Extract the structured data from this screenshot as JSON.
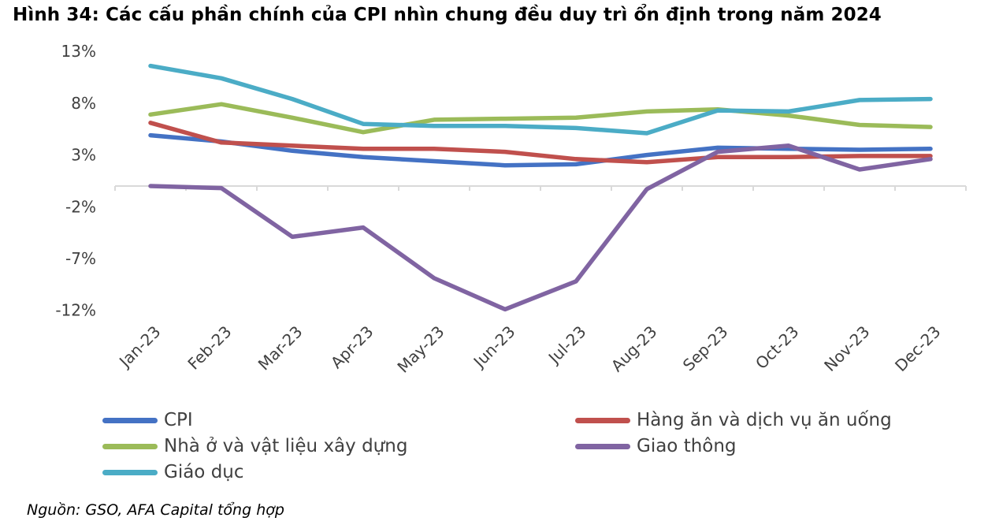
{
  "title": "Hình 34: Các cấu phần chính của CPI nhìn chung đều duy trì ổn định trong năm 2024",
  "source": "Nguồn: GSO, AFA Capital tổng hợp",
  "chart_data": {
    "type": "line",
    "categories": [
      "Jan-23",
      "Feb-23",
      "Mar-23",
      "Apr-23",
      "May-23",
      "Jun-23",
      "Jul-23",
      "Aug-23",
      "Sep-23",
      "Oct-23",
      "Nov-23",
      "Dec-23"
    ],
    "yticks": [
      "13%",
      "8%",
      "3%",
      "-2%",
      "-7%",
      "-12%"
    ],
    "ylim": [
      -12,
      13
    ],
    "series": [
      {
        "name": "CPI",
        "color": "#4472c4",
        "values": [
          4.9,
          4.3,
          3.4,
          2.8,
          2.4,
          2.0,
          2.1,
          3.0,
          3.7,
          3.6,
          3.5,
          3.6
        ]
      },
      {
        "name": "Hàng ăn và dịch vụ ăn uống",
        "color": "#c0504d",
        "values": [
          6.1,
          4.2,
          3.9,
          3.6,
          3.6,
          3.3,
          2.6,
          2.3,
          2.8,
          2.8,
          2.9,
          2.9
        ]
      },
      {
        "name": "Nhà ở và vật liệu xây dựng",
        "color": "#9bbb59",
        "values": [
          6.9,
          7.9,
          6.6,
          5.2,
          6.4,
          6.5,
          6.6,
          7.2,
          7.4,
          6.8,
          5.9,
          5.7
        ]
      },
      {
        "name": "Giao thông",
        "color": "#8064a2",
        "values": [
          0.0,
          -0.2,
          -4.9,
          -4.0,
          -8.9,
          -11.9,
          -9.2,
          -0.3,
          3.3,
          3.9,
          1.6,
          2.6
        ]
      },
      {
        "name": "Giáo dục",
        "color": "#4bacc6",
        "values": [
          11.6,
          10.4,
          8.4,
          6.0,
          5.8,
          5.8,
          5.6,
          5.1,
          7.3,
          7.2,
          8.3,
          8.4
        ]
      }
    ]
  }
}
